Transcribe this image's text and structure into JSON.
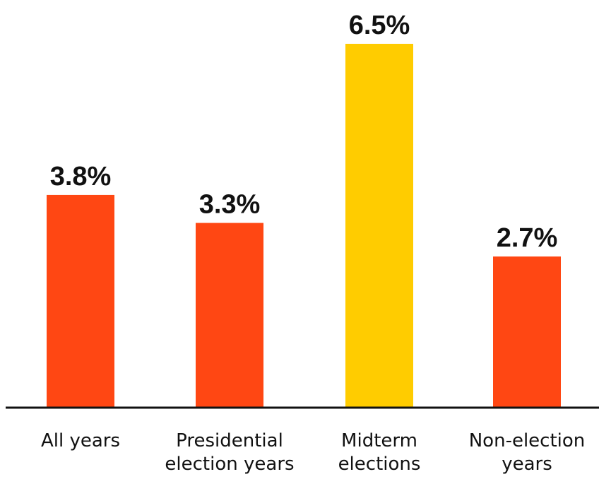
{
  "chart_data": {
    "type": "bar",
    "title": "",
    "xlabel": "",
    "ylabel": "",
    "ylim": [
      0,
      6.5
    ],
    "grid": false,
    "categories": [
      [
        "All years"
      ],
      [
        "Presidential",
        "election years"
      ],
      [
        "Midterm",
        "elections"
      ],
      [
        "Non-election",
        "years"
      ]
    ],
    "values": [
      3.8,
      3.3,
      6.5,
      2.7
    ],
    "value_labels": [
      "3.8%",
      "3.3%",
      "6.5%",
      "2.7%"
    ],
    "colors": [
      "#FF4713",
      "#FF4713",
      "#FFCC00",
      "#FF4713"
    ],
    "axis_color": "#111111"
  }
}
